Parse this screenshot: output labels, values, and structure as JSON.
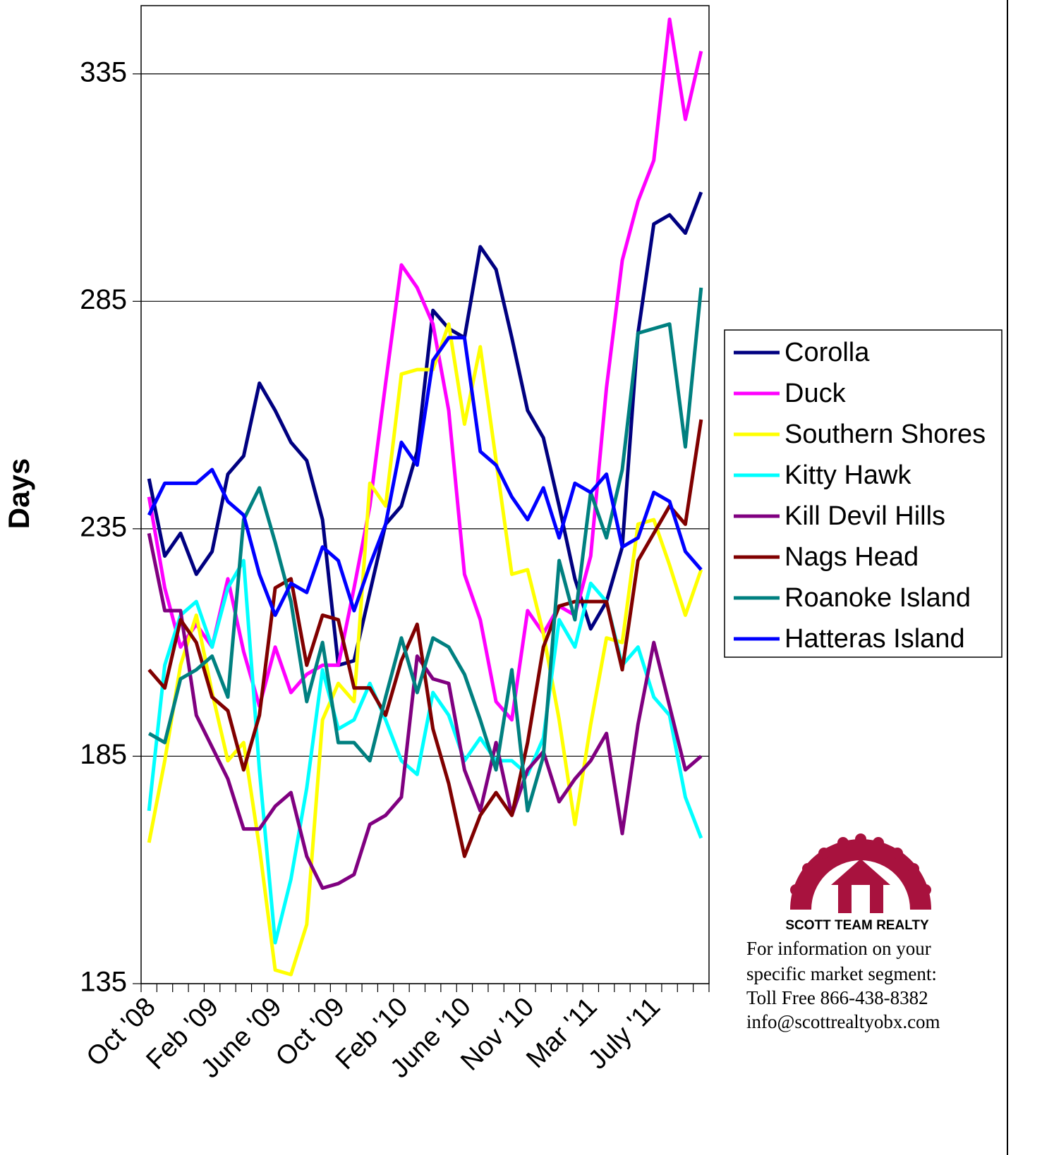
{
  "chart_data": {
    "type": "line",
    "y_label": "Days",
    "categories": [
      "Oct '08",
      null,
      null,
      null,
      "Feb '09",
      null,
      null,
      null,
      "June '09",
      null,
      null,
      null,
      "Oct '09",
      null,
      null,
      null,
      "Feb '10",
      null,
      null,
      null,
      "June '10",
      null,
      null,
      null,
      "Nov '10",
      null,
      null,
      null,
      "Mar '11",
      null,
      null,
      null,
      "July '11",
      null,
      null,
      null
    ],
    "ylim": [
      135,
      350
    ],
    "yticks": [
      135,
      185,
      235,
      285,
      335
    ],
    "grid": true,
    "legend": "right",
    "series": [
      {
        "name": "Corolla",
        "color": "#000080",
        "values": [
          246,
          229,
          234,
          225,
          230,
          247,
          251,
          267,
          261,
          254,
          250,
          237,
          205,
          206,
          221,
          236,
          240,
          252,
          283,
          279,
          277,
          297,
          292,
          277,
          261,
          255,
          240,
          224,
          213,
          219,
          231,
          278,
          302,
          304,
          300,
          309
        ]
      },
      {
        "name": "Duck",
        "color": "#ff00ff",
        "values": [
          242,
          222,
          209,
          214,
          209,
          224,
          208,
          196,
          209,
          199,
          203,
          205,
          205,
          222,
          240,
          267,
          293,
          288,
          280,
          261,
          225,
          215,
          197,
          193,
          217,
          212,
          218,
          216,
          229,
          266,
          294,
          307,
          316,
          347,
          325,
          340
        ]
      },
      {
        "name": "Southern Shores",
        "color": "#ffff00",
        "values": [
          166,
          184,
          205,
          216,
          199,
          184,
          188,
          165,
          138,
          137,
          148,
          193,
          201,
          197,
          245,
          240,
          269,
          270,
          270,
          280,
          258,
          275,
          250,
          225,
          226,
          212,
          193,
          170,
          192,
          211,
          210,
          236,
          237,
          227,
          216,
          226
        ]
      },
      {
        "name": "Kitty Hawk",
        "color": "#00ffff",
        "values": [
          173,
          205,
          216,
          219,
          209,
          222,
          228,
          182,
          144,
          158,
          178,
          204,
          191,
          193,
          201,
          193,
          184,
          181,
          199,
          194,
          184,
          189,
          184,
          184,
          181,
          189,
          215,
          209,
          223,
          219,
          205,
          209,
          198,
          194,
          176,
          167
        ]
      },
      {
        "name": "Kill Devil Hills",
        "color": "#800080",
        "values": [
          234,
          217,
          217,
          194,
          187,
          180,
          169,
          169,
          174,
          177,
          163,
          156,
          157,
          159,
          170,
          172,
          176,
          207,
          202,
          201,
          182,
          173,
          188,
          172,
          182,
          186,
          175,
          180,
          184,
          190,
          168,
          192,
          210,
          196,
          182,
          185
        ]
      },
      {
        "name": "Nags Head",
        "color": "#800000",
        "values": [
          204,
          200,
          215,
          210,
          198,
          195,
          182,
          194,
          222,
          224,
          205,
          216,
          215,
          200,
          200,
          194,
          206,
          214,
          191,
          179,
          163,
          172,
          177,
          172,
          188,
          209,
          218,
          219,
          219,
          219,
          204,
          228,
          234,
          240,
          236,
          259
        ]
      },
      {
        "name": "Roanoke Island",
        "color": "#008080",
        "values": [
          190,
          188,
          202,
          204,
          207,
          198,
          237,
          244,
          232,
          219,
          197,
          210,
          188,
          188,
          184,
          198,
          211,
          199,
          211,
          209,
          203,
          193,
          182,
          204,
          173,
          185,
          228,
          215,
          243,
          233,
          248,
          278,
          279,
          280,
          253,
          288
        ]
      },
      {
        "name": "Hatteras Island",
        "color": "#0000ff",
        "values": [
          238,
          245,
          245,
          245,
          248,
          241,
          238,
          225,
          216,
          223,
          221,
          231,
          228,
          217,
          227,
          236,
          254,
          249,
          272,
          277,
          277,
          252,
          249,
          242,
          237,
          244,
          233,
          245,
          243,
          247,
          231,
          233,
          243,
          241,
          230,
          226
        ]
      }
    ]
  },
  "logo_text": "SCOTT TEAM REALTY",
  "contact": [
    "For information on your",
    "specific market segment:",
    "Toll Free 866-438-8382",
    "info@scottrealtyobx.com"
  ]
}
